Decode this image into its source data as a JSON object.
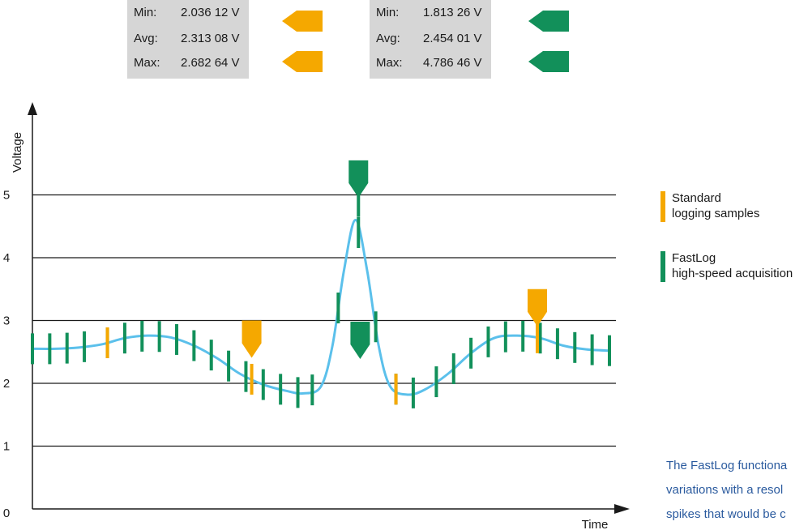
{
  "stats_standard": {
    "min_label": "Min:",
    "min_value": "2.036 12 V",
    "avg_label": "Avg:",
    "avg_value": "2.313 08 V",
    "max_label": "Max:",
    "max_value": "2.682 64 V",
    "color": "#f5a800"
  },
  "stats_fastlog": {
    "min_label": "Min:",
    "min_value": "1.813 26 V",
    "avg_label": "Avg:",
    "avg_value": "2.454 01 V",
    "max_label": "Max:",
    "max_value": "4.786 46 V",
    "color": "#12905a"
  },
  "chart_data": {
    "type": "line",
    "ylabel": "Voltage",
    "xlabel": "Time",
    "yticks": [
      "0",
      "1",
      "2",
      "3",
      "4",
      "5"
    ],
    "ylim": [
      0,
      6
    ],
    "gridlines_y": [
      1,
      2,
      3,
      4,
      5
    ],
    "curve_color": "#5bc0eb",
    "curve": [
      [
        0,
        2.55
      ],
      [
        4,
        2.55
      ],
      [
        8,
        2.57
      ],
      [
        12,
        2.62
      ],
      [
        16,
        2.72
      ],
      [
        20,
        2.76
      ],
      [
        24,
        2.73
      ],
      [
        28,
        2.6
      ],
      [
        32,
        2.4
      ],
      [
        36,
        2.15
      ],
      [
        40,
        1.98
      ],
      [
        44,
        1.88
      ],
      [
        47,
        1.84
      ],
      [
        50,
        1.95
      ],
      [
        52,
        2.6
      ],
      [
        54,
        3.8
      ],
      [
        56,
        4.6
      ],
      [
        58,
        3.8
      ],
      [
        60,
        2.6
      ],
      [
        62,
        1.95
      ],
      [
        65,
        1.82
      ],
      [
        68,
        1.9
      ],
      [
        72,
        2.15
      ],
      [
        76,
        2.48
      ],
      [
        80,
        2.72
      ],
      [
        84,
        2.76
      ],
      [
        88,
        2.72
      ],
      [
        92,
        2.6
      ],
      [
        96,
        2.54
      ],
      [
        100,
        2.52
      ]
    ],
    "fastlog_samples": [
      0,
      3,
      6,
      9,
      13,
      16,
      19,
      22,
      25,
      28,
      31,
      34,
      37,
      40,
      43,
      46,
      48.5,
      53,
      56.5,
      59.5,
      63,
      66,
      70,
      73,
      76,
      79,
      82,
      85,
      88,
      91,
      94,
      97,
      100
    ],
    "standard_samples": [
      13,
      38,
      63,
      87.5
    ],
    "fastlog_markers": [
      {
        "x": 56.5,
        "y": 5.55
      },
      {
        "x": 56.8,
        "y": 2.98
      }
    ],
    "standard_markers": [
      {
        "x": 38,
        "y": 3.0
      },
      {
        "x": 87.5,
        "y": 3.5
      }
    ],
    "standard_color": "#f5a800",
    "fastlog_color": "#12905a",
    "legend": [
      {
        "line1": "Standard",
        "line2": "logging samples"
      },
      {
        "line1": "FastLog",
        "line2": "high-speed acquisition"
      }
    ]
  },
  "description": {
    "line1": "The FastLog functiona",
    "line2": "variations with a resol",
    "line3": "spikes that would be c"
  }
}
